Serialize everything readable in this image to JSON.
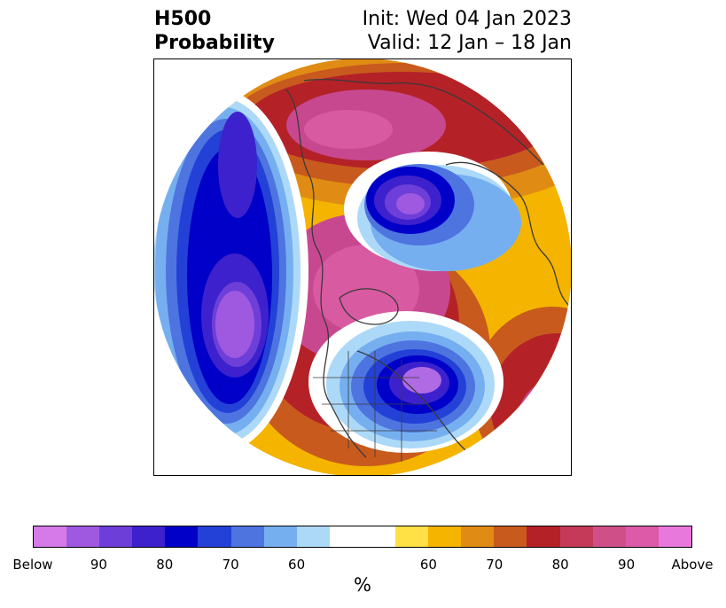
{
  "title": {
    "line1": "H500",
    "line2": "Probability"
  },
  "init_text": "Init: Wed 04 Jan 2023",
  "valid_text": "Valid: 12 Jan – 18 Jan",
  "colorbar": {
    "colors": [
      "#d57ae8",
      "#9e59e0",
      "#6e3fd8",
      "#3d21cc",
      "#0000c8",
      "#2341d7",
      "#4e74e0",
      "#76aff0",
      "#add9f8",
      "#ffffff",
      "#ffffff",
      "#ffe146",
      "#f4b400",
      "#e08c14",
      "#c85a1e",
      "#b42228",
      "#c43a58",
      "#cf5088",
      "#dc5aa8",
      "#e878dc"
    ],
    "tick_labels": [
      "Below",
      "90",
      "80",
      "70",
      "60",
      "60",
      "70",
      "80",
      "90",
      "Above"
    ],
    "unit": "%"
  },
  "map": {
    "colors": {
      "deep_magenta": "#c84890",
      "magenta": "#d85aa0",
      "red": "#b42228",
      "dark_orange": "#c85a1e",
      "orange": "#e08c14",
      "gold": "#f4b400",
      "yellow": "#ffe146",
      "white": "#ffffff",
      "light_blue": "#add9f8",
      "blue1": "#76aff0",
      "blue2": "#4e74e0",
      "blue3": "#2341d7",
      "navy": "#0000c8",
      "indigo": "#3d21cc",
      "violet": "#6e3fd8",
      "purple": "#9e59e0",
      "lilac": "#b06ae4",
      "coast": "#3a3a3a"
    }
  }
}
